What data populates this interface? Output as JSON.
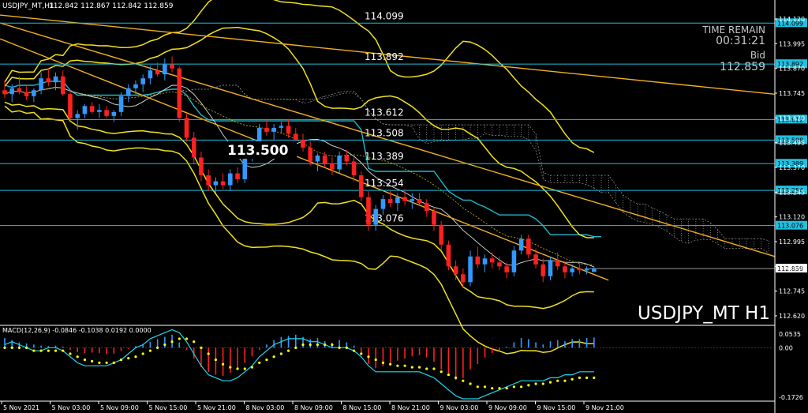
{
  "header": {
    "symbol_tf": "USDJPY_MT,H1",
    "ohlc": "112.842 112.867 112.842 112.859"
  },
  "info": {
    "time_remain_label": "TIME REMAIN",
    "time_remain": "00:31:21",
    "bid_label": "Bid",
    "bid": "112.859"
  },
  "watermark": "USDJPY_MT H1",
  "macd_label": "MACD(12,26,9) -0.0846 -0.1038 0.0192 0.0000",
  "colors": {
    "background": "#000000",
    "bull": "#3399ff",
    "bear": "#ff2020",
    "level_line": "#20c0e0",
    "trend": "#f0b020",
    "bands": "#f0e020",
    "ichimoku_cloud": "#d8d8d8",
    "macd_signal": "#ffff00",
    "macd_main": "#20d8f0"
  },
  "chart_data": {
    "type": "candlestick",
    "title": "USDJPY_MT,H1",
    "ylim": [
      112.58,
      114.16
    ],
    "y_ticks": [
      "114.120",
      "113.995",
      "113.870",
      "113.745",
      "113.620",
      "113.495",
      "113.370",
      "113.245",
      "113.120",
      "112.995",
      "112.870",
      "112.745",
      "112.620"
    ],
    "x_ticks": [
      "5 Nov 2021",
      "5 Nov 03:00",
      "5 Nov 09:00",
      "5 Nov 15:00",
      "5 Nov 21:00",
      "8 Nov 03:00",
      "8 Nov 09:00",
      "8 Nov 15:00",
      "8 Nov 21:00",
      "9 Nov 03:00",
      "9 Nov 09:00",
      "9 Nov 15:00",
      "9 Nov 21:00"
    ],
    "levels": [
      {
        "label": "114.099",
        "price": 114.099
      },
      {
        "label": "113.892",
        "price": 113.892
      },
      {
        "label": "113.612",
        "price": 113.612
      },
      {
        "label": "113.508",
        "price": 113.508
      },
      {
        "label": "113.389",
        "price": 113.389
      },
      {
        "label": "113.254",
        "price": 113.254
      },
      {
        "label": "113.076",
        "price": 113.076
      }
    ],
    "bid_price": 112.859,
    "annotation": "113.500",
    "candles": [
      [
        113.76,
        113.81,
        113.72,
        113.74
      ],
      [
        113.74,
        113.79,
        113.7,
        113.77
      ],
      [
        113.77,
        113.83,
        113.74,
        113.75
      ],
      [
        113.75,
        113.78,
        113.71,
        113.73
      ],
      [
        113.73,
        113.77,
        113.7,
        113.76
      ],
      [
        113.76,
        113.85,
        113.74,
        113.82
      ],
      [
        113.82,
        113.87,
        113.78,
        113.8
      ],
      [
        113.8,
        113.85,
        113.76,
        113.83
      ],
      [
        113.83,
        113.86,
        113.73,
        113.74
      ],
      [
        113.74,
        113.76,
        113.61,
        113.62
      ],
      [
        113.62,
        113.66,
        113.56,
        113.64
      ],
      [
        113.64,
        113.69,
        113.62,
        113.68
      ],
      [
        113.68,
        113.7,
        113.64,
        113.65
      ],
      [
        113.65,
        113.69,
        113.62,
        113.66
      ],
      [
        113.66,
        113.68,
        113.62,
        113.63
      ],
      [
        113.63,
        113.66,
        113.6,
        113.65
      ],
      [
        113.65,
        113.75,
        113.63,
        113.73
      ],
      [
        113.73,
        113.79,
        113.7,
        113.77
      ],
      [
        113.77,
        113.81,
        113.74,
        113.79
      ],
      [
        113.79,
        113.84,
        113.75,
        113.82
      ],
      [
        113.82,
        113.88,
        113.79,
        113.86
      ],
      [
        113.86,
        113.9,
        113.83,
        113.84
      ],
      [
        113.84,
        113.92,
        113.81,
        113.89
      ],
      [
        113.89,
        113.93,
        113.85,
        113.87
      ],
      [
        113.87,
        113.88,
        113.6,
        113.62
      ],
      [
        113.62,
        113.64,
        113.5,
        113.52
      ],
      [
        113.52,
        113.55,
        113.39,
        113.42
      ],
      [
        113.42,
        113.45,
        113.3,
        113.33
      ],
      [
        113.33,
        113.36,
        113.25,
        113.28
      ],
      [
        113.28,
        113.32,
        113.24,
        113.3
      ],
      [
        113.3,
        113.34,
        113.26,
        113.28
      ],
      [
        113.28,
        113.36,
        113.25,
        113.34
      ],
      [
        113.34,
        113.37,
        113.29,
        113.31
      ],
      [
        113.31,
        113.44,
        113.29,
        113.42
      ],
      [
        113.42,
        113.52,
        113.4,
        113.5
      ],
      [
        113.5,
        113.59,
        113.47,
        113.57
      ],
      [
        113.57,
        113.61,
        113.53,
        113.55
      ],
      [
        113.55,
        113.59,
        113.51,
        113.57
      ],
      [
        113.57,
        113.6,
        113.54,
        113.58
      ],
      [
        113.58,
        113.61,
        113.52,
        113.54
      ],
      [
        113.54,
        113.57,
        113.48,
        113.51
      ],
      [
        113.51,
        113.54,
        113.45,
        113.47
      ],
      [
        113.47,
        113.5,
        113.38,
        113.4
      ],
      [
        113.4,
        113.44,
        113.35,
        113.43
      ],
      [
        113.43,
        113.45,
        113.37,
        113.39
      ],
      [
        113.39,
        113.42,
        113.33,
        113.36
      ],
      [
        113.36,
        113.45,
        113.34,
        113.43
      ],
      [
        113.43,
        113.46,
        113.38,
        113.4
      ],
      [
        113.4,
        113.42,
        113.3,
        113.33
      ],
      [
        113.33,
        113.35,
        113.2,
        113.22
      ],
      [
        113.22,
        113.25,
        113.05,
        113.08
      ],
      [
        113.08,
        113.18,
        113.05,
        113.16
      ],
      [
        113.16,
        113.23,
        113.13,
        113.21
      ],
      [
        113.21,
        113.25,
        113.17,
        113.19
      ],
      [
        113.19,
        113.24,
        113.15,
        113.22
      ],
      [
        113.22,
        113.26,
        113.18,
        113.2
      ],
      [
        113.2,
        113.24,
        113.16,
        113.21
      ],
      [
        113.21,
        113.24,
        113.18,
        113.19
      ],
      [
        113.19,
        113.21,
        113.12,
        113.15
      ],
      [
        113.15,
        113.17,
        113.05,
        113.08
      ],
      [
        113.08,
        113.1,
        112.95,
        112.98
      ],
      [
        112.98,
        113.0,
        112.85,
        112.87
      ],
      [
        112.87,
        112.9,
        112.8,
        112.83
      ],
      [
        112.83,
        112.86,
        112.76,
        112.79
      ],
      [
        112.79,
        112.95,
        112.77,
        112.92
      ],
      [
        112.92,
        112.97,
        112.86,
        112.88
      ],
      [
        112.88,
        112.93,
        112.84,
        112.91
      ],
      [
        112.91,
        112.94,
        112.86,
        112.89
      ],
      [
        112.89,
        112.92,
        112.85,
        112.87
      ],
      [
        112.87,
        112.89,
        112.81,
        112.84
      ],
      [
        112.84,
        112.97,
        112.82,
        112.95
      ],
      [
        112.95,
        113.03,
        112.93,
        113.01
      ],
      [
        113.01,
        113.03,
        112.91,
        112.93
      ],
      [
        112.93,
        112.96,
        112.86,
        112.88
      ],
      [
        112.88,
        112.91,
        112.79,
        112.82
      ],
      [
        112.82,
        112.92,
        112.8,
        112.9
      ],
      [
        112.9,
        112.94,
        112.85,
        112.87
      ],
      [
        112.87,
        112.89,
        112.81,
        112.84
      ],
      [
        112.84,
        112.88,
        112.82,
        112.86
      ],
      [
        112.86,
        112.89,
        112.83,
        112.85
      ],
      [
        112.85,
        112.87,
        112.83,
        112.86
      ],
      [
        112.842,
        112.867,
        112.842,
        112.859
      ]
    ],
    "macd_hist": [
      0.018,
      0.014,
      0.01,
      0.008,
      0.006,
      0.004,
      0.003,
      0.004,
      0.002,
      -0.004,
      -0.008,
      -0.01,
      -0.009,
      -0.01,
      -0.012,
      -0.011,
      -0.006,
      -0.002,
      0.003,
      0.007,
      0.011,
      0.016,
      0.02,
      0.024,
      0.01,
      -0.004,
      -0.02,
      -0.036,
      -0.045,
      -0.05,
      -0.052,
      -0.046,
      -0.04,
      -0.028,
      -0.016,
      -0.004,
      0.006,
      0.014,
      0.02,
      0.022,
      0.024,
      0.02,
      0.016,
      0.018,
      0.012,
      0.009,
      0.014,
      0.01,
      0.004,
      -0.012,
      -0.03,
      -0.038,
      -0.034,
      -0.028,
      -0.024,
      -0.02,
      -0.016,
      -0.014,
      -0.018,
      -0.026,
      -0.04,
      -0.052,
      -0.06,
      -0.056,
      -0.04,
      -0.03,
      -0.018,
      -0.01,
      -0.004,
      0.002,
      0.01,
      0.018,
      0.016,
      0.01,
      0.006,
      0.012,
      0.014,
      0.012,
      0.016,
      0.016,
      0.018,
      0.019
    ],
    "macd_main": [
      0.01,
      0.02,
      0.01,
      0.0,
      -0.01,
      -0.01,
      0.0,
      0.0,
      -0.01,
      -0.03,
      -0.05,
      -0.06,
      -0.06,
      -0.06,
      -0.06,
      -0.05,
      -0.04,
      -0.02,
      0.0,
      0.01,
      0.03,
      0.04,
      0.05,
      0.06,
      0.05,
      0.02,
      -0.02,
      -0.06,
      -0.09,
      -0.1,
      -0.11,
      -0.11,
      -0.1,
      -0.08,
      -0.06,
      -0.03,
      -0.01,
      0.01,
      0.02,
      0.03,
      0.03,
      0.03,
      0.02,
      0.02,
      0.01,
      0.0,
      0.0,
      0.0,
      -0.01,
      -0.03,
      -0.06,
      -0.08,
      -0.08,
      -0.08,
      -0.08,
      -0.08,
      -0.08,
      -0.08,
      -0.09,
      -0.1,
      -0.12,
      -0.14,
      -0.16,
      -0.17,
      -0.17,
      -0.17,
      -0.16,
      -0.15,
      -0.14,
      -0.13,
      -0.12,
      -0.11,
      -0.11,
      -0.11,
      -0.11,
      -0.1,
      -0.1,
      -0.09,
      -0.09,
      -0.08,
      -0.08,
      -0.08
    ],
    "macd_signal": [
      0.0,
      0.0,
      0.0,
      0.0,
      -0.01,
      -0.01,
      -0.01,
      -0.01,
      -0.01,
      -0.02,
      -0.03,
      -0.04,
      -0.045,
      -0.05,
      -0.05,
      -0.05,
      -0.04,
      -0.035,
      -0.03,
      -0.02,
      -0.01,
      0.0,
      0.01,
      0.02,
      0.03,
      0.03,
      0.02,
      0.0,
      -0.02,
      -0.04,
      -0.055,
      -0.065,
      -0.07,
      -0.07,
      -0.065,
      -0.05,
      -0.04,
      -0.03,
      -0.02,
      -0.01,
      0.0,
      0.01,
      0.01,
      0.01,
      0.01,
      0.01,
      0.0,
      0.0,
      -0.01,
      -0.02,
      -0.03,
      -0.04,
      -0.05,
      -0.055,
      -0.06,
      -0.06,
      -0.065,
      -0.065,
      -0.07,
      -0.07,
      -0.08,
      -0.09,
      -0.1,
      -0.11,
      -0.12,
      -0.13,
      -0.13,
      -0.135,
      -0.135,
      -0.135,
      -0.13,
      -0.13,
      -0.125,
      -0.12,
      -0.12,
      -0.115,
      -0.11,
      -0.11,
      -0.105,
      -0.1,
      -0.1,
      -0.1
    ],
    "macd_ticks": [
      "0.0535",
      "0.00",
      "-0.1726"
    ],
    "macd_ylim": [
      -0.1726,
      0.0535
    ]
  }
}
